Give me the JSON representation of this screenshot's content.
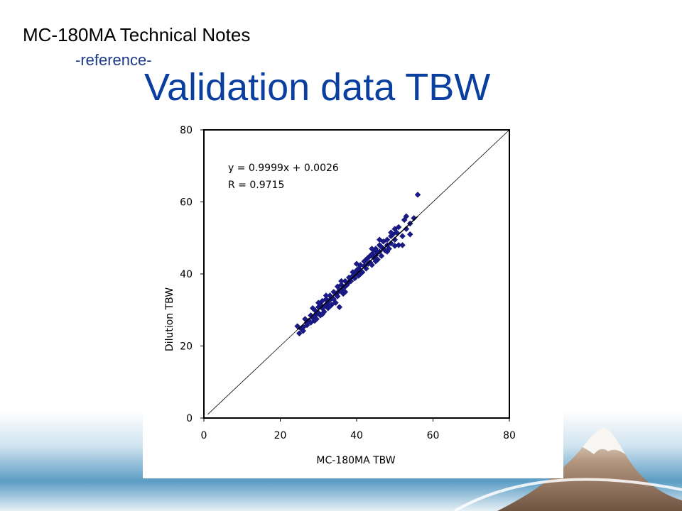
{
  "header": {
    "title": "MC-180MA  Technical Notes",
    "subtitle": "-reference-",
    "slide_title": "Validation data  TBW"
  },
  "colors": {
    "title_blue": "#0a3fa0",
    "marker": "#1a1a8c",
    "sky_band": "#4a90b8",
    "mountain": "#8a6a55"
  },
  "chart_data": {
    "type": "scatter",
    "xlabel": "MC-180MA TBW",
    "ylabel": "Dilution TBW",
    "xlim": [
      0,
      80
    ],
    "ylim": [
      0,
      80
    ],
    "x_ticks": [
      "0",
      "20",
      "40",
      "60",
      "80"
    ],
    "y_ticks": [
      "0",
      "20",
      "40",
      "60",
      "80"
    ],
    "equation": "y = 0.9999x + 0.0026",
    "r_value": "R = 0.9715",
    "identity_line": [
      [
        0,
        0
      ],
      [
        80,
        80
      ]
    ],
    "regression_line": [
      [
        24.5,
        24.5
      ],
      [
        56,
        56
      ]
    ],
    "marker": "diamond",
    "points": [
      [
        24.5,
        25.5
      ],
      [
        25,
        23.5
      ],
      [
        25.5,
        24.8
      ],
      [
        26,
        25.2
      ],
      [
        26.5,
        27.5
      ],
      [
        27,
        25.8
      ],
      [
        27.5,
        27
      ],
      [
        28,
        26.5
      ],
      [
        28,
        28.5
      ],
      [
        28.5,
        27.8
      ],
      [
        29,
        28.2
      ],
      [
        29,
        30
      ],
      [
        29.5,
        29
      ],
      [
        29.5,
        27.5
      ],
      [
        30,
        30.8
      ],
      [
        30,
        29.2
      ],
      [
        30.5,
        31.5
      ],
      [
        30.5,
        28.5
      ],
      [
        31,
        30.5
      ],
      [
        31,
        32.5
      ],
      [
        31.5,
        31
      ],
      [
        31.5,
        29.5
      ],
      [
        32,
        33
      ],
      [
        32,
        31.5
      ],
      [
        32.5,
        30.5
      ],
      [
        32.5,
        32.2
      ],
      [
        33,
        34
      ],
      [
        33,
        32.8
      ],
      [
        33.5,
        31.5
      ],
      [
        33.5,
        33.5
      ],
      [
        34,
        35
      ],
      [
        34,
        33
      ],
      [
        34.5,
        32
      ],
      [
        34.5,
        34.5
      ],
      [
        35,
        36.5
      ],
      [
        35,
        34.8
      ],
      [
        35.5,
        30.8
      ],
      [
        35.5,
        35.5
      ],
      [
        36,
        37
      ],
      [
        36,
        35.2
      ],
      [
        36.5,
        34.5
      ],
      [
        36.5,
        36.2
      ],
      [
        37,
        38
      ],
      [
        37,
        36.5
      ],
      [
        37.5,
        37
      ],
      [
        38,
        39
      ],
      [
        38,
        37.8
      ],
      [
        38.5,
        38
      ],
      [
        39,
        40.5
      ],
      [
        39,
        39.5
      ],
      [
        39.5,
        38.8
      ],
      [
        40,
        41
      ],
      [
        40,
        40
      ],
      [
        40.5,
        39.5
      ],
      [
        40.5,
        41.5
      ],
      [
        41,
        42.5
      ],
      [
        41,
        41
      ],
      [
        41.5,
        40.5
      ],
      [
        42,
        43.5
      ],
      [
        42,
        42.2
      ],
      [
        42.5,
        41.5
      ],
      [
        42.5,
        44
      ],
      [
        43,
        44.5
      ],
      [
        43,
        42.8
      ],
      [
        43.5,
        45
      ],
      [
        43.5,
        43.2
      ],
      [
        44,
        45.5
      ],
      [
        44,
        42.5
      ],
      [
        44.5,
        44.5
      ],
      [
        44.5,
        46.5
      ],
      [
        45,
        47
      ],
      [
        45,
        45.2
      ],
      [
        45.5,
        44
      ],
      [
        45.5,
        46
      ],
      [
        46,
        48
      ],
      [
        46,
        46.2
      ],
      [
        46.5,
        45
      ],
      [
        46.5,
        47.5
      ],
      [
        47,
        49
      ],
      [
        47,
        47
      ],
      [
        47.5,
        46.5
      ],
      [
        48,
        49.5
      ],
      [
        48,
        48
      ],
      [
        48.5,
        47
      ],
      [
        49,
        50.5
      ],
      [
        49,
        48.5
      ],
      [
        49.5,
        51
      ],
      [
        50,
        52.5
      ],
      [
        50,
        49.5
      ],
      [
        50.5,
        51.5
      ],
      [
        51,
        48
      ],
      [
        51,
        53
      ],
      [
        52,
        50.5
      ],
      [
        52,
        48
      ],
      [
        53,
        52.5
      ],
      [
        53,
        56
      ],
      [
        54,
        51
      ],
      [
        54,
        54
      ],
      [
        55,
        55.5
      ],
      [
        56,
        62
      ],
      [
        52.5,
        55
      ],
      [
        26,
        24.2
      ],
      [
        27,
        26.5
      ],
      [
        29,
        27
      ],
      [
        31,
        28.8
      ],
      [
        33,
        31
      ],
      [
        35,
        33.8
      ],
      [
        37,
        35
      ],
      [
        41,
        40
      ],
      [
        45,
        43.5
      ],
      [
        48,
        46.2
      ],
      [
        50,
        47.8
      ],
      [
        28.5,
        30.5
      ],
      [
        30,
        32
      ],
      [
        32,
        34
      ],
      [
        36,
        38
      ],
      [
        40,
        42.8
      ],
      [
        44,
        47
      ],
      [
        46,
        49.5
      ],
      [
        49,
        51.5
      ]
    ]
  }
}
